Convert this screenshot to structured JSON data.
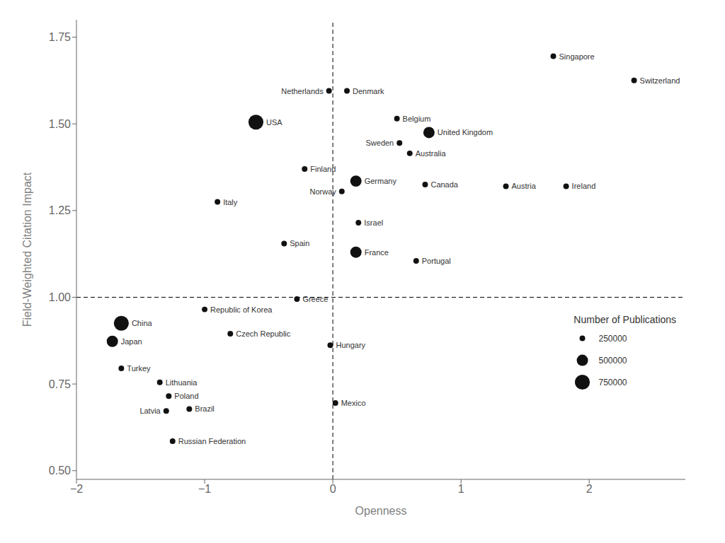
{
  "chart_data": {
    "type": "scatter",
    "xlabel": "Openness",
    "ylabel": "Field-Weighted Citation Impact",
    "color": "#111111",
    "labels": [
      "USA",
      "China",
      "United Kingdom",
      "Germany",
      "France",
      "Japan",
      "Canada",
      "Italy",
      "Australia",
      "Spain",
      "Netherlands",
      "Denmark",
      "Sweden",
      "Belgium",
      "Switzerland",
      "Austria",
      "Ireland",
      "Norway",
      "Finland",
      "Israel",
      "Portugal",
      "Greece",
      "Singapore",
      "Republic of Korea",
      "Czech Republic",
      "Hungary",
      "Turkey",
      "Lithuania",
      "Poland",
      "Brazil",
      "Latvia",
      "Mexico",
      "Russian Federation"
    ],
    "x": [
      -0.6,
      -1.65,
      0.75,
      0.18,
      0.18,
      -1.72,
      0.72,
      -0.9,
      0.6,
      -0.38,
      -0.03,
      0.11,
      0.52,
      0.5,
      2.35,
      1.35,
      1.82,
      0.07,
      -0.22,
      0.2,
      0.65,
      -0.28,
      1.72,
      -1.0,
      -0.8,
      -0.02,
      -1.65,
      -1.35,
      -1.28,
      -1.12,
      -1.3,
      0.02,
      -1.25
    ],
    "values": [
      1.505,
      0.925,
      1.475,
      1.335,
      1.13,
      0.873,
      1.325,
      1.275,
      1.415,
      1.155,
      1.595,
      1.595,
      1.445,
      1.515,
      1.625,
      1.32,
      1.32,
      1.305,
      1.37,
      1.215,
      1.105,
      0.995,
      1.695,
      0.965,
      0.895,
      0.862,
      0.795,
      0.755,
      0.715,
      0.678,
      0.672,
      0.695,
      0.585
    ],
    "sizes": [
      750000,
      750000,
      500000,
      500000,
      500000,
      500000,
      250000,
      250000,
      250000,
      250000,
      250000,
      250000,
      250000,
      250000,
      250000,
      250000,
      250000,
      250000,
      250000,
      250000,
      250000,
      250000,
      250000,
      250000,
      250000,
      250000,
      250000,
      250000,
      250000,
      250000,
      250000,
      250000,
      250000
    ],
    "size_legend": {
      "title": "Number of Publications",
      "values": [
        250000,
        500000,
        750000
      ]
    },
    "vlines": [
      0
    ],
    "hlines": [
      1.0
    ],
    "line_style": "dashed",
    "xlim": [
      -2.0,
      2.75
    ],
    "ylim": [
      0.475,
      1.8
    ],
    "xticks": [
      {
        "value": -2,
        "label": "−2"
      },
      {
        "value": -1,
        "label": "−1"
      },
      0,
      1,
      2
    ],
    "yticks": [
      {
        "value": 0.5,
        "label": "0.50"
      },
      {
        "value": 0.75,
        "label": "0.75"
      },
      {
        "value": 1.0,
        "label": "1.00"
      },
      {
        "value": 1.25,
        "label": "1.25"
      },
      {
        "value": 1.5,
        "label": "1.50"
      },
      {
        "value": 1.75,
        "label": "1.75"
      }
    ],
    "grid": false
  }
}
